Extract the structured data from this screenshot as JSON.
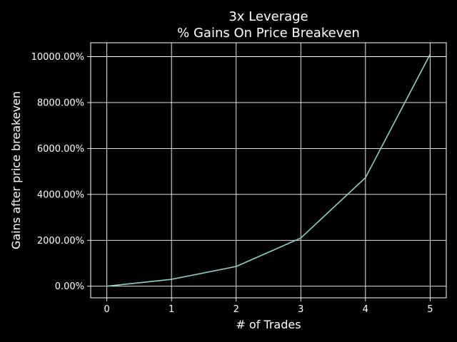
{
  "chart_data": {
    "type": "line",
    "title": {
      "line1": "3x Leverage",
      "line2": "% Gains On Price Breakeven"
    },
    "xlabel": "# of Trades",
    "ylabel": "Gains after price breakeven",
    "xlim": [
      -0.25,
      5.25
    ],
    "ylim": [
      -505,
      10605
    ],
    "grid": true,
    "x_ticks": [
      0,
      1,
      2,
      3,
      4,
      5
    ],
    "x_tick_labels": [
      "0",
      "1",
      "2",
      "3",
      "4",
      "5"
    ],
    "y_ticks": [
      0,
      2000,
      4000,
      6000,
      8000,
      10000
    ],
    "y_tick_labels": [
      "0.00%",
      "2000.00%",
      "4000.00%",
      "6000.00%",
      "8000.00%",
      "10000.00%"
    ],
    "series": [
      {
        "name": "gains",
        "color": "#8dd3c7",
        "x": [
          0,
          1,
          2,
          3,
          4,
          5
        ],
        "y": [
          0,
          300,
          860,
          2100,
          4730,
          10100
        ]
      }
    ]
  },
  "colors": {
    "background": "#000000",
    "foreground": "#ffffff",
    "line": "#8dd3c7"
  }
}
